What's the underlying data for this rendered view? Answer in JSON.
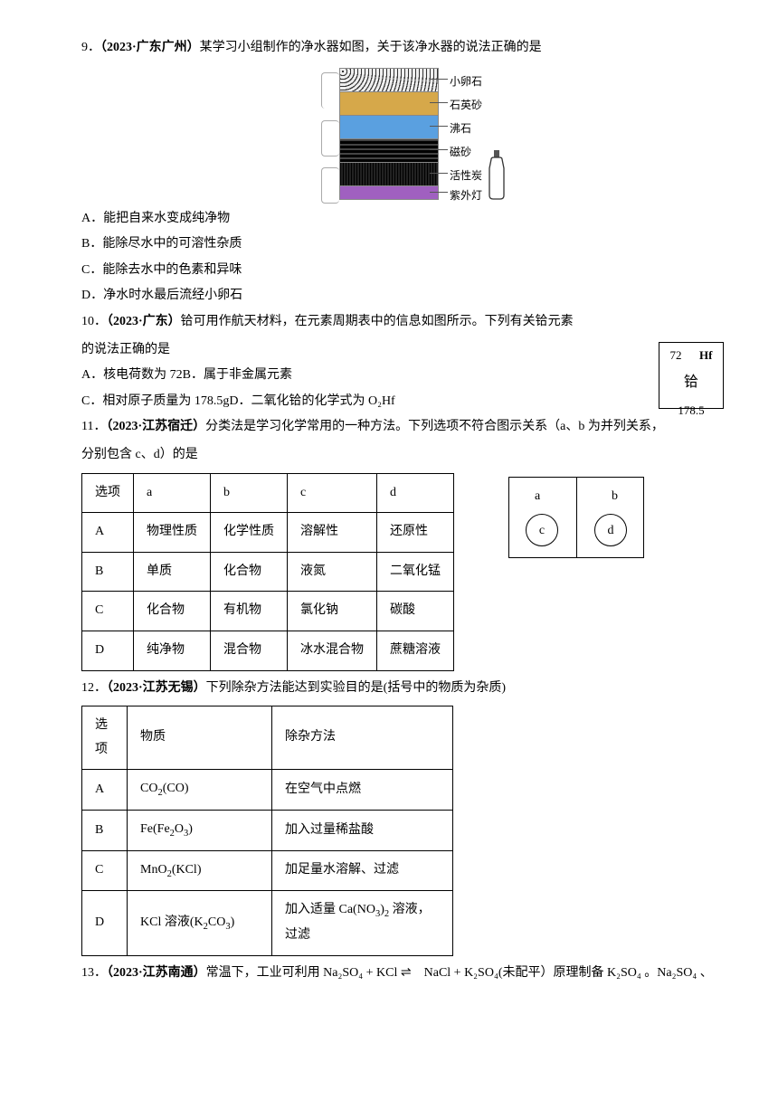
{
  "q9": {
    "prefix": "9．",
    "source": "（2023·广东广州）",
    "stem": "某学习小组制作的净水器如图，关于该净水器的说法正确的是",
    "layers": [
      {
        "label": "小卵石",
        "bg": "repeating-radial-gradient(circle at 3px 3px, #333 0, #333 1.2px, #eee 1.2px, #eee 4px)"
      },
      {
        "label": "石英砂",
        "bg": "#d6a84a"
      },
      {
        "label": "沸石",
        "bg": "linear-gradient(#5aa0e0,#5aa0e0)"
      },
      {
        "label": "磁砂",
        "bg": "repeating-linear-gradient(0deg,#000 0,#000 3px,#444 3px,#444 5px)"
      },
      {
        "label": "活性炭",
        "bg": "repeating-linear-gradient(90deg,#000 0,#000 1px,#222 1px,#222 3px)"
      },
      {
        "label": "紫外灯",
        "bg": "#a060c0"
      }
    ],
    "options": {
      "A": "A．能把自来水变成纯净物",
      "B": "B．能除尽水中的可溶性杂质",
      "C": "C．能除去水中的色素和异味",
      "D": "D．净水时水最后流经小卵石"
    }
  },
  "q10": {
    "prefix": "10．",
    "source": "（2023·广东）",
    "stem1": "铪可用作航天材料，在元素周期表中的信息如图所示。下列有关铪元素",
    "stem2": "的说法正确的是",
    "tile": {
      "num": "72",
      "sym": "Hf",
      "name": "铪",
      "mass": "178.5"
    },
    "options": {
      "A": "A．核电荷数为 72",
      "B": "B．属于非金属元素",
      "C": "C．相对原子质量为 178.5g",
      "D": "D．二氧化铪的化学式为 O₂Hf"
    }
  },
  "q11": {
    "prefix": "11．",
    "source": "（2023·江苏宿迁）",
    "stem1": "分类法是学习化学常用的一种方法。下列选项不符合图示关系（a、b 为并列关系，",
    "stem2": "分别包含 c、d）的是",
    "headers": [
      "选项",
      "a",
      "b",
      "c",
      "d"
    ],
    "rows": [
      [
        "A",
        "物理性质",
        "化学性质",
        "溶解性",
        "还原性"
      ],
      [
        "B",
        "单质",
        "化合物",
        "液氮",
        "二氧化锰"
      ],
      [
        "C",
        "化合物",
        "有机物",
        "氯化钠",
        "碳酸"
      ],
      [
        "D",
        "纯净物",
        "混合物",
        "冰水混合物",
        "蔗糖溶液"
      ]
    ],
    "venn": {
      "a": "a",
      "b": "b",
      "c": "c",
      "d": "d"
    }
  },
  "q12": {
    "prefix": "12．",
    "source": "（2023·江苏无锡）",
    "stem": "下列除杂方法能达到实验目的是(括号中的物质为杂质)",
    "headers": [
      "选项",
      "物质",
      "除杂方法"
    ],
    "rows": [
      {
        "opt": "A",
        "mat": "CO₂(CO)",
        "method": "在空气中点燃"
      },
      {
        "opt": "B",
        "mat": "Fe(Fe₂O₃)",
        "method": "加入过量稀盐酸"
      },
      {
        "opt": "C",
        "mat": "MnO₂(KCl)",
        "method": "加足量水溶解、过滤"
      },
      {
        "opt": "D",
        "mat": "KCl 溶液(K₂CO₃)",
        "method": "加入适量 Ca(NO₃)₂ 溶液，过滤"
      }
    ]
  },
  "q13": {
    "prefix": "13．",
    "source": "（2023·江苏南通）",
    "stem": "常温下，工业可利用 Na₂SO₄ + KCl ⇌　NaCl + K₂SO₄(未配平）原理制备 K₂SO₄ 。Na₂SO₄ 、"
  }
}
